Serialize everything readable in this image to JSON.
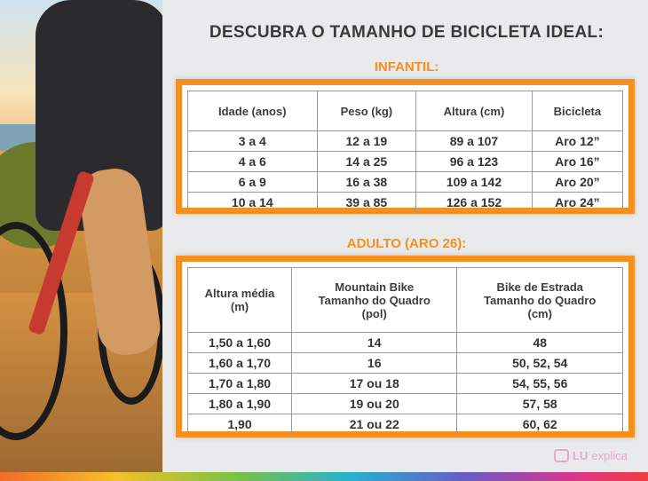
{
  "title": "DESCUBRA O TAMANHO DE BICICLETA IDEAL:",
  "infantil": {
    "heading": "INFANTIL:",
    "columns": [
      "Idade (anos)",
      "Peso (kg)",
      "Altura (cm)",
      "Bicicleta"
    ],
    "rows": [
      [
        "3 a 4",
        "12 a 19",
        "89 a 107",
        "Aro 12”"
      ],
      [
        "4 a 6",
        "14 a 25",
        "96 a 123",
        "Aro 16”"
      ],
      [
        "6 a 9",
        "16 a 38",
        "109 a 142",
        "Aro 20”"
      ],
      [
        "10 a 14",
        "39 a 85",
        "126 a 152",
        "Aro 24”"
      ]
    ]
  },
  "adulto": {
    "heading": "ADULTO (ARO 26):",
    "columns": [
      [
        "Altura média",
        "(m)"
      ],
      [
        "Mountain Bike",
        "Tamanho do Quadro",
        "(pol)"
      ],
      [
        "Bike de Estrada",
        "Tamanho do Quadro",
        "(cm)"
      ]
    ],
    "rows": [
      [
        "1,50 a 1,60",
        "14",
        "48"
      ],
      [
        "1,60 a 1,70",
        "16",
        "50, 52, 54"
      ],
      [
        "1,70 a 1,80",
        "17 ou 18",
        "54, 55, 56"
      ],
      [
        "1,80 a 1,90",
        "19 ou 20",
        "57, 58"
      ],
      [
        "1,90",
        "21 ou 22",
        "60, 62"
      ]
    ]
  },
  "logo": {
    "part1": "LU",
    "part2": "explica"
  },
  "colors": {
    "accent": "#f5901e",
    "text": "#3a3a3a",
    "logo": "#e9a6c9"
  }
}
